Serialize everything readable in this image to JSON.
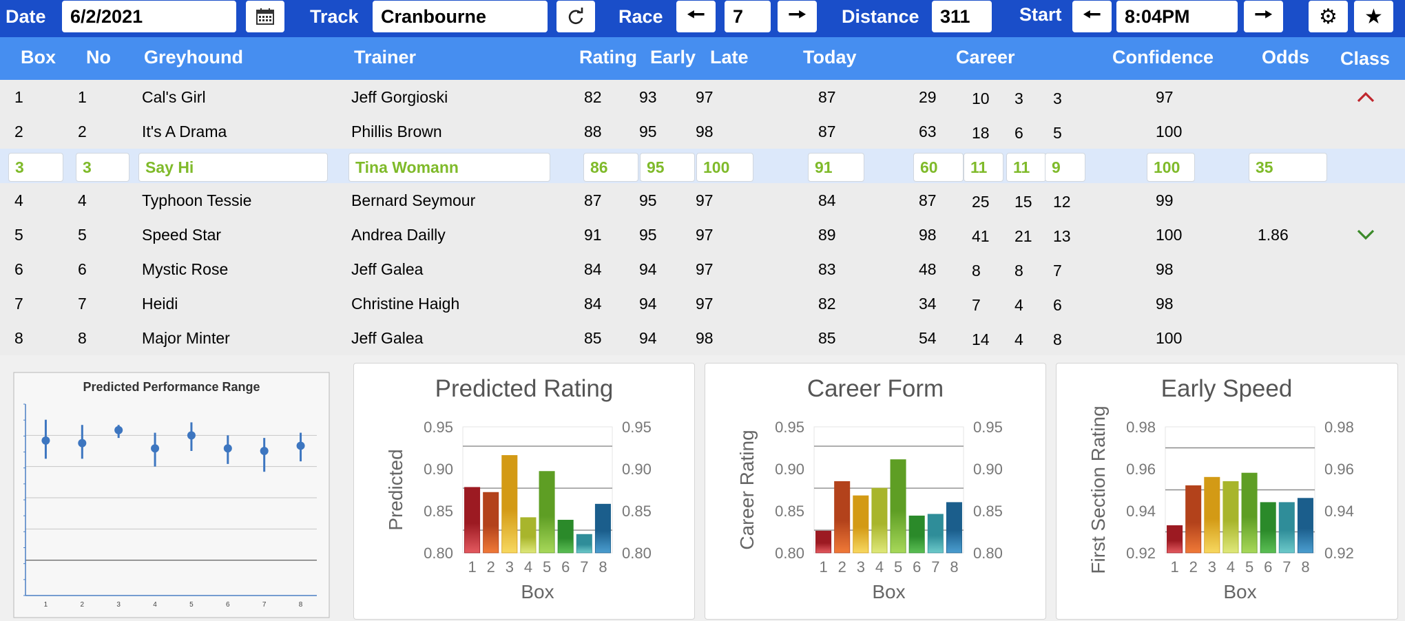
{
  "toolbar": {
    "date_label": "Date",
    "date_value": "6/2/2021",
    "track_label": "Track",
    "track_value": "Cranbourne",
    "race_label": "Race",
    "race_value": "7",
    "distance_label": "Distance",
    "distance_value": "311",
    "start_label": "Start",
    "start_value": "8:04PM"
  },
  "icons": {
    "calendar": "calendar-icon",
    "refresh": "refresh-icon",
    "prev": "arrow-left-icon",
    "next": "arrow-right-icon",
    "settings": "gear-icon",
    "favorite": "star-icon",
    "up": "chevron-up-icon",
    "down": "chevron-down-icon"
  },
  "colors": {
    "toolbar": "#1a4ec9",
    "header": "#468ef0",
    "selected_text": "#7fba2a",
    "up": "#c0262d",
    "down": "#3b8a29"
  },
  "table": {
    "headers": {
      "box": "Box",
      "no": "No",
      "greyhound": "Greyhound",
      "trainer": "Trainer",
      "rating": "Rating",
      "early": "Early",
      "late": "Late",
      "today": "Today",
      "career": "Career",
      "confidence": "Confidence",
      "odds": "Odds",
      "class": "Class"
    },
    "rows": [
      {
        "box": "1",
        "no": "1",
        "greyhound": "Cal's Girl",
        "trainer": "Jeff Gorgioski",
        "rating": "82",
        "early": "93",
        "late": "97",
        "today": "87",
        "career": [
          "29",
          "10",
          "3",
          "3"
        ],
        "confidence": "97",
        "odds": "",
        "class": "up"
      },
      {
        "box": "2",
        "no": "2",
        "greyhound": "It's A Drama",
        "trainer": "Phillis Brown",
        "rating": "88",
        "early": "95",
        "late": "98",
        "today": "87",
        "career": [
          "63",
          "18",
          "6",
          "5"
        ],
        "confidence": "100",
        "odds": "",
        "class": ""
      },
      {
        "box": "3",
        "no": "3",
        "greyhound": "Say Hi",
        "trainer": "Tina Womann",
        "rating": "86",
        "early": "95",
        "late": "100",
        "today": "91",
        "career": [
          "60",
          "11",
          "11",
          "9"
        ],
        "confidence": "100",
        "odds": "35",
        "class": "",
        "selected": true
      },
      {
        "box": "4",
        "no": "4",
        "greyhound": "Typhoon Tessie",
        "trainer": "Bernard Seymour",
        "rating": "87",
        "early": "95",
        "late": "97",
        "today": "84",
        "career": [
          "87",
          "25",
          "15",
          "12"
        ],
        "confidence": "99",
        "odds": "",
        "class": ""
      },
      {
        "box": "5",
        "no": "5",
        "greyhound": "Speed Star",
        "trainer": "Andrea Dailly",
        "rating": "91",
        "early": "95",
        "late": "97",
        "today": "89",
        "career": [
          "98",
          "41",
          "21",
          "13"
        ],
        "confidence": "100",
        "odds": "1.86",
        "class": "down"
      },
      {
        "box": "6",
        "no": "6",
        "greyhound": "Mystic Rose",
        "trainer": "Jeff Galea",
        "rating": "84",
        "early": "94",
        "late": "97",
        "today": "83",
        "career": [
          "48",
          "8",
          "8",
          "7"
        ],
        "confidence": "98",
        "odds": "",
        "class": ""
      },
      {
        "box": "7",
        "no": "7",
        "greyhound": "Heidi",
        "trainer": "Christine Haigh",
        "rating": "84",
        "early": "94",
        "late": "97",
        "today": "82",
        "career": [
          "34",
          "7",
          "4",
          "6"
        ],
        "confidence": "98",
        "odds": "",
        "class": ""
      },
      {
        "box": "8",
        "no": "8",
        "greyhound": "Major Minter",
        "trainer": "Jeff Galea",
        "rating": "85",
        "early": "94",
        "late": "98",
        "today": "85",
        "career": [
          "54",
          "14",
          "4",
          "8"
        ],
        "confidence": "100",
        "odds": "",
        "class": ""
      }
    ]
  },
  "chart_data": [
    {
      "type": "scatter",
      "title": "Predicted Performance Range",
      "categories": [
        "1",
        "2",
        "3",
        "4",
        "5",
        "6",
        "7",
        "8"
      ],
      "values": [
        0.58,
        0.57,
        0.62,
        0.55,
        0.6,
        0.55,
        0.54,
        0.56
      ],
      "low": [
        0.51,
        0.51,
        0.59,
        0.48,
        0.54,
        0.49,
        0.46,
        0.5
      ],
      "high": [
        0.66,
        0.64,
        0.64,
        0.61,
        0.65,
        0.6,
        0.59,
        0.61
      ],
      "ylim": [
        0,
        0.72
      ],
      "grid": true
    },
    {
      "type": "bar",
      "title": "Predicted Rating",
      "xlabel": "Box",
      "ylabel": "Predicted",
      "categories": [
        "1",
        "2",
        "3",
        "4",
        "5",
        "6",
        "7",
        "8"
      ],
      "values": [
        0.878,
        0.872,
        0.916,
        0.842,
        0.897,
        0.839,
        0.822,
        0.858
      ],
      "ylim": [
        0.8,
        0.95
      ],
      "yticks": [
        "0.80",
        "0.85",
        "0.90",
        "0.95"
      ],
      "ref_lines": [
        0.927,
        0.877,
        0.827
      ]
    },
    {
      "type": "bar",
      "title": "Career Form",
      "xlabel": "Box",
      "ylabel": "Career Rating",
      "categories": [
        "1",
        "2",
        "3",
        "4",
        "5",
        "6",
        "7",
        "8"
      ],
      "values": [
        0.826,
        0.885,
        0.868,
        0.877,
        0.911,
        0.844,
        0.846,
        0.86
      ],
      "ylim": [
        0.8,
        0.95
      ],
      "yticks": [
        "0.80",
        "0.85",
        "0.90",
        "0.95"
      ],
      "ref_lines": [
        0.927,
        0.877,
        0.827
      ]
    },
    {
      "type": "bar",
      "title": "Early Speed",
      "xlabel": "Box",
      "ylabel": "First Section Rating",
      "categories": [
        "1",
        "2",
        "3",
        "4",
        "5",
        "6",
        "7",
        "8"
      ],
      "values": [
        0.933,
        0.952,
        0.956,
        0.954,
        0.958,
        0.944,
        0.944,
        0.946
      ],
      "ylim": [
        0.92,
        0.98
      ],
      "yticks": [
        "0.92",
        "0.94",
        "0.96",
        "0.98"
      ],
      "ref_lines": [
        0.97,
        0.95,
        0.93
      ]
    }
  ]
}
